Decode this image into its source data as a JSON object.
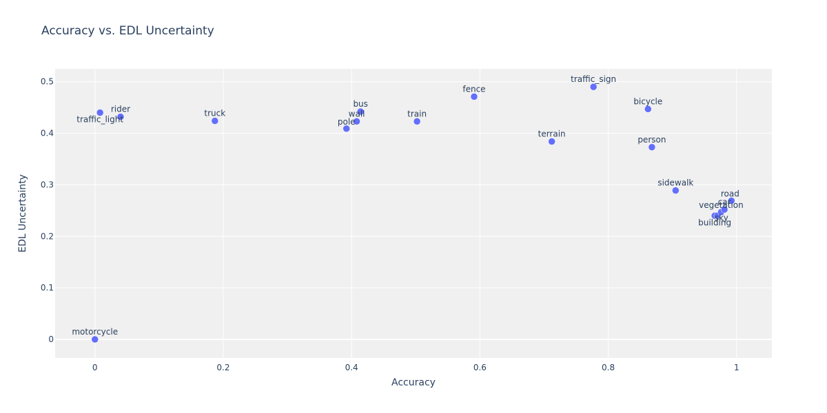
{
  "chart_data": {
    "type": "scatter",
    "title": "Accuracy vs. EDL Uncertainty",
    "xlabel": "Accuracy",
    "ylabel": "EDL Uncertainty",
    "xlim": [
      -0.062,
      1.055
    ],
    "ylim": [
      -0.036,
      0.525
    ],
    "xticks": [
      0,
      0.2,
      0.4,
      0.6,
      0.8,
      1
    ],
    "xtick_labels": [
      "0",
      "0.2",
      "0.4",
      "0.6",
      "0.8",
      "1"
    ],
    "yticks": [
      0,
      0.1,
      0.2,
      0.3,
      0.4,
      0.5
    ],
    "ytick_labels": [
      "0",
      "0.1",
      "0.2",
      "0.3",
      "0.4",
      "0.5"
    ],
    "grid": true,
    "legend": false,
    "marker_color": "#636efa",
    "plot_bg": "#f0f0f0",
    "points": [
      {
        "label": "motorcycle",
        "x": 0.0,
        "y": 0.0
      },
      {
        "label": "traffic_light",
        "x": 0.008,
        "y": 0.44
      },
      {
        "label": "rider",
        "x": 0.04,
        "y": 0.432
      },
      {
        "label": "truck",
        "x": 0.187,
        "y": 0.424
      },
      {
        "label": "pole",
        "x": 0.392,
        "y": 0.409
      },
      {
        "label": "wall",
        "x": 0.408,
        "y": 0.423
      },
      {
        "label": "bus",
        "x": 0.414,
        "y": 0.442
      },
      {
        "label": "train",
        "x": 0.502,
        "y": 0.423
      },
      {
        "label": "fence",
        "x": 0.591,
        "y": 0.471
      },
      {
        "label": "terrain",
        "x": 0.712,
        "y": 0.384
      },
      {
        "label": "traffic_sign",
        "x": 0.777,
        "y": 0.49
      },
      {
        "label": "bicycle",
        "x": 0.862,
        "y": 0.447
      },
      {
        "label": "person",
        "x": 0.868,
        "y": 0.373
      },
      {
        "label": "sidewalk",
        "x": 0.905,
        "y": 0.289
      },
      {
        "label": "building",
        "x": 0.966,
        "y": 0.24
      },
      {
        "label": "sky",
        "x": 0.97,
        "y": 0.24
      },
      {
        "label": "vegetation",
        "x": 0.976,
        "y": 0.247
      },
      {
        "label": "car",
        "x": 0.981,
        "y": 0.252
      },
      {
        "label": "road",
        "x": 0.992,
        "y": 0.269
      }
    ]
  }
}
